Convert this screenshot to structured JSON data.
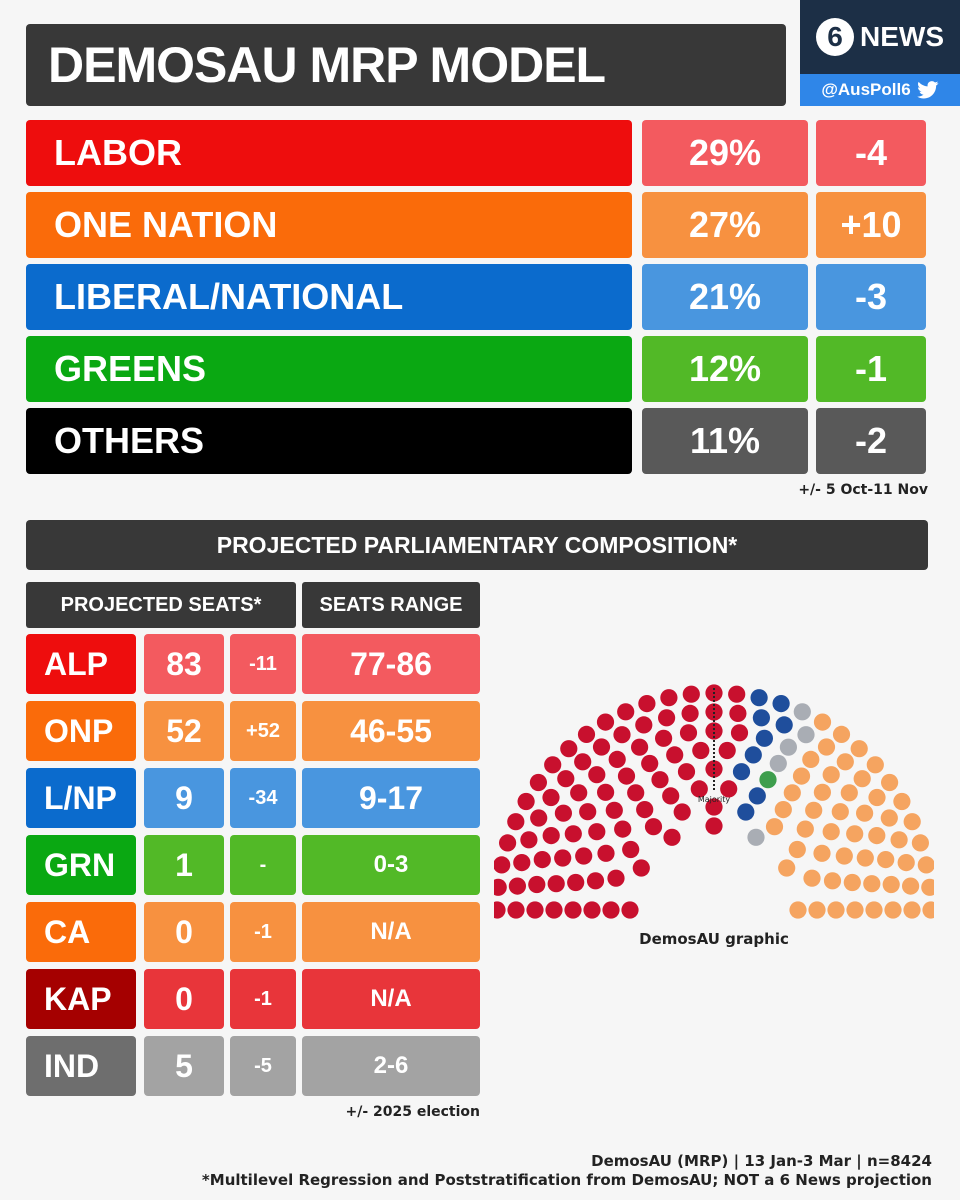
{
  "title": "DEMOSAU MRP MODEL",
  "brand": {
    "logo_number": "6",
    "logo_text": "NEWS",
    "handle": "@AusPoll6",
    "icon": "twitter-bird-icon"
  },
  "chart_data": [
    {
      "type": "table",
      "rows": [
        {
          "party": "LABOR",
          "vote_pct": "29%",
          "change": "-4",
          "color": "#ee0d0d",
          "light": "#f35a5f"
        },
        {
          "party": "ONE NATION",
          "vote_pct": "27%",
          "change": "+10",
          "color": "#fa6b0a",
          "light": "#f79140"
        },
        {
          "party": "LIBERAL/NATIONAL",
          "vote_pct": "21%",
          "change": "-3",
          "color": "#0b6bcd",
          "light": "#4996df"
        },
        {
          "party": "GREENS",
          "vote_pct": "12%",
          "change": "-1",
          "color": "#0aa812",
          "light": "#52b927"
        },
        {
          "party": "OTHERS",
          "vote_pct": "11%",
          "change": "-2",
          "color": "#000000",
          "light": "#595959"
        }
      ],
      "note": "+/- 5 Oct-11 Nov"
    },
    {
      "type": "table",
      "title": "PROJECTED PARLIAMENTARY COMPOSITION*",
      "headers": {
        "seats": "PROJECTED SEATS*",
        "range": "SEATS RANGE"
      },
      "rows": [
        {
          "party": "ALP",
          "seats": "83",
          "change": "-11",
          "range": "77-86",
          "color": "#ee0d0d",
          "light": "#f35a5f"
        },
        {
          "party": "ONP",
          "seats": "52",
          "change": "+52",
          "range": "46-55",
          "color": "#fa6b0a",
          "light": "#f79140"
        },
        {
          "party": "L/NP",
          "seats": "9",
          "change": "-34",
          "range": "9-17",
          "color": "#0b6bcd",
          "light": "#4996df"
        },
        {
          "party": "GRN",
          "seats": "1",
          "change": "-",
          "range": "0-3",
          "color": "#0aa812",
          "light": "#52b927"
        },
        {
          "party": "CA",
          "seats": "0",
          "change": "-1",
          "range": "N/A",
          "color": "#fa6b0a",
          "light": "#f79140"
        },
        {
          "party": "KAP",
          "seats": "0",
          "change": "-1",
          "range": "N/A",
          "color": "#a50000",
          "light": "#e8353a"
        },
        {
          "party": "IND",
          "seats": "5",
          "change": "-5",
          "range": "2-6",
          "color": "#6e6e6e",
          "light": "#a3a3a3"
        }
      ],
      "note": "+/- 2025 election"
    },
    {
      "type": "hemicycle",
      "segments": [
        {
          "party": "ALP",
          "seats": 83,
          "color": "#c8102e"
        },
        {
          "party": "L/NP",
          "seats": 9,
          "color": "#1f4e9c"
        },
        {
          "party": "GRN",
          "seats": 1,
          "color": "#3e9e4d"
        },
        {
          "party": "IND",
          "seats": 5,
          "color": "#a9adb4"
        },
        {
          "party": "ONP",
          "seats": 52,
          "color": "#f5a460"
        }
      ],
      "majority_label": "Majority",
      "caption": "DemosAU graphic"
    }
  ],
  "footer": {
    "line1": "DemosAU (MRP) | 13 Jan-3 Mar | n=8424",
    "line2": "*Multilevel Regression and Poststratification from DemosAU; NOT a 6 News projection"
  }
}
